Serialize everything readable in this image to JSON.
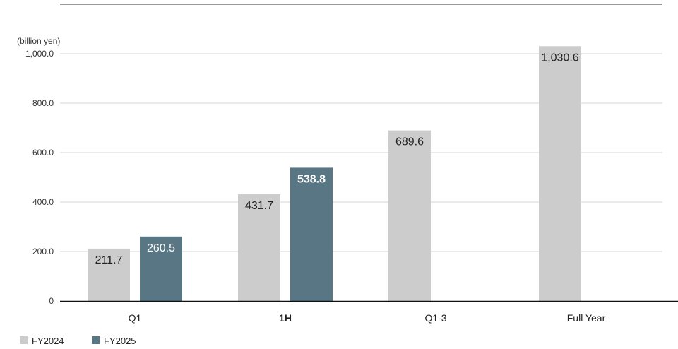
{
  "chart_data": {
    "type": "bar",
    "unit_label": "(billion yen)",
    "categories": [
      "Q1",
      "1H",
      "Q1-3",
      "Full Year"
    ],
    "highlight_category": "1H",
    "y_ticks": [
      "0",
      "200.0",
      "400.0",
      "600.0",
      "800.0",
      "1,000.0"
    ],
    "ylim": [
      0,
      1000
    ],
    "grid": true,
    "legend_position": "bottom-left",
    "series": [
      {
        "name": "FY2024",
        "color": "#cccccc",
        "values": [
          211.7,
          431.7,
          689.6,
          1030.6
        ],
        "labels": [
          "211.7",
          "431.7",
          "689.6",
          "1,030.6"
        ],
        "label_color": "#222222"
      },
      {
        "name": "FY2025",
        "color": "#587684",
        "values": [
          260.5,
          538.8,
          null,
          null
        ],
        "labels": [
          "260.5",
          "538.8",
          "",
          ""
        ],
        "label_color": "#ffffff"
      }
    ]
  }
}
